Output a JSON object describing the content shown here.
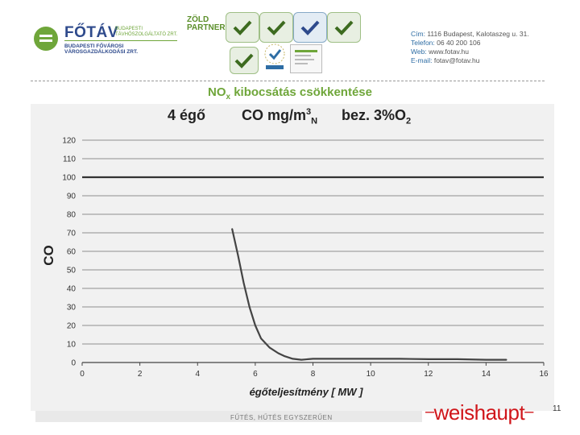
{
  "header": {
    "brand_name": "FŐTÁV",
    "brand_sub": "BUDAPESTI TÁVHŐSZOLGÁLTATÓ ZRT.",
    "brand_line": "BUDAPESTI FŐVÁROSI VÁROSGAZDÁLKODÁSI ZRT.",
    "zold_partner": "ZÖLD PARTNER",
    "contact": {
      "address_label": "Cím:",
      "address": "1116 Budapest, Kalotaszeg u. 31.",
      "phone_label": "Telefon:",
      "phone": "06 40 200 106",
      "web_label": "Web:",
      "web": "www.fotav.hu",
      "email_label": "E-mail:",
      "email": "fotav@fotav.hu"
    }
  },
  "slide": {
    "title_main": "NO",
    "title_sub": "x",
    "title_rest": "kibocsátás csökkentése"
  },
  "chart_title": {
    "part1": "4 égő",
    "part2_main": "CO mg/m",
    "part2_sup": "3",
    "part2_sub": "N",
    "part3_main": "bez. 3%O",
    "part3_sub": "2"
  },
  "chart_data": {
    "type": "line",
    "xlabel": "égőteljesítmény [ MW ]",
    "ylabel": "CO",
    "xlim": [
      0,
      16
    ],
    "ylim": [
      0,
      120
    ],
    "xticks": [
      0,
      2,
      4,
      6,
      8,
      10,
      12,
      14,
      16
    ],
    "yticks": [
      0,
      10,
      20,
      30,
      40,
      50,
      60,
      70,
      80,
      90,
      100,
      110,
      120
    ],
    "grid": true,
    "reference_line": {
      "y": 100
    },
    "series": [
      {
        "x": [
          5.2,
          5.4,
          5.6,
          5.8,
          6.0,
          6.2,
          6.5,
          6.8,
          7.0,
          7.3,
          7.6,
          8.0,
          9.0,
          10.0,
          11.0,
          12.0,
          13.0,
          14.0,
          14.7
        ],
        "y": [
          72,
          58,
          43,
          30,
          20,
          13,
          8,
          5,
          3.5,
          2,
          1.5,
          2,
          2,
          2,
          2,
          1.8,
          1.8,
          1.5,
          1.5
        ]
      }
    ]
  },
  "footer": {
    "tagline": "FŰTÉS, HŰTÉS EGYSZERŰEN",
    "brand": "weishaupt",
    "dash_left": "–",
    "dash_right": "–",
    "page_number": "11"
  },
  "colors": {
    "accent_green": "#6fa63a",
    "brand_blue": "#2e4a8c",
    "weishaupt_red": "#d0161b"
  }
}
